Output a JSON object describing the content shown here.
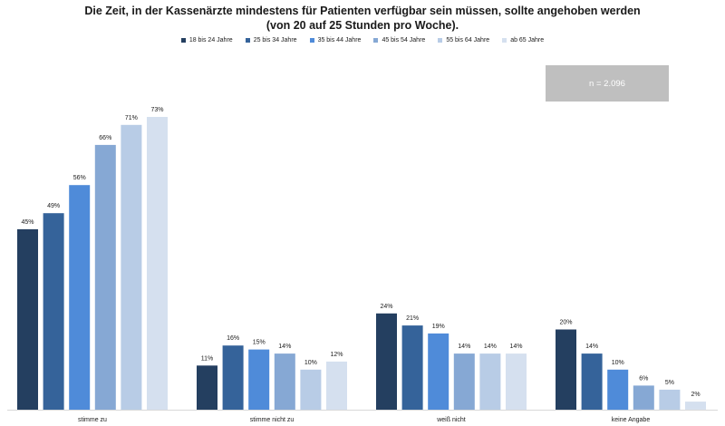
{
  "title": {
    "line1": "Die Zeit, in der Kassenärzte mindestens für Patienten verfügbar sein müssen, sollte angehoben werden",
    "line2": "(von 20 auf 25 Stunden pro Woche)."
  },
  "annotation": "n = 2.096",
  "chart_data": {
    "type": "bar",
    "categories": [
      "stimme zu",
      "stimme nicht zu",
      "weiß nicht",
      "keine Angabe"
    ],
    "unit": "%",
    "series": [
      {
        "name": "18 bis 24 Jahre",
        "color": "#243F60",
        "values": [
          45,
          11,
          24,
          20
        ]
      },
      {
        "name": "25 bis 34 Jahre",
        "color": "#35639A",
        "values": [
          49,
          16,
          21,
          14
        ]
      },
      {
        "name": "35 bis 44 Jahre",
        "color": "#4F8BD9",
        "values": [
          56,
          15,
          19,
          10
        ]
      },
      {
        "name": "45 bis 54 Jahre",
        "color": "#86A8D4",
        "values": [
          66,
          14,
          14,
          6
        ]
      },
      {
        "name": "55 bis 64 Jahre",
        "color": "#B8CCE6",
        "values": [
          71,
          10,
          14,
          5
        ]
      },
      {
        "name": "ab 65 Jahre",
        "color": "#D5E0EF",
        "values": [
          73,
          12,
          14,
          2
        ]
      }
    ],
    "ylim": [
      0,
      80
    ],
    "grid": false,
    "legend_position": "top"
  }
}
